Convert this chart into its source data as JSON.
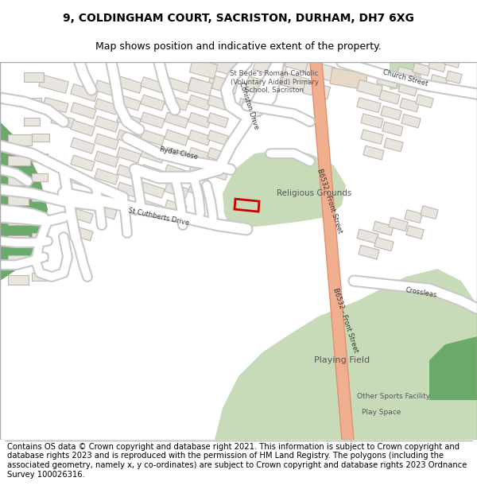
{
  "title_line1": "9, COLDINGHAM COURT, SACRISTON, DURHAM, DH7 6XG",
  "title_line2": "Map shows position and indicative extent of the property.",
  "footer_text": "Contains OS data © Crown copyright and database right 2021. This information is subject to Crown copyright and database rights 2023 and is reproduced with the permission of HM Land Registry. The polygons (including the associated geometry, namely x, y co-ordinates) are subject to Crown copyright and database rights 2023 Ordnance Survey 100026316.",
  "map_bg": "#ffffff",
  "road_fill": "#ffffff",
  "road_outline": "#c8c8c8",
  "green_light": "#c8dbb8",
  "green_dark": "#6aaa6a",
  "green_mid": "#9aba88",
  "building_fill": "#e8e4de",
  "building_outline": "#c0b8b0",
  "orange_road_fill": "#f0b090",
  "orange_road_outline": "#e09070",
  "plot_outline": "#cc0000",
  "title_fontsize": 10,
  "subtitle_fontsize": 9,
  "footer_fontsize": 7.2,
  "label_color": "#555555",
  "road_label_color": "#333333"
}
